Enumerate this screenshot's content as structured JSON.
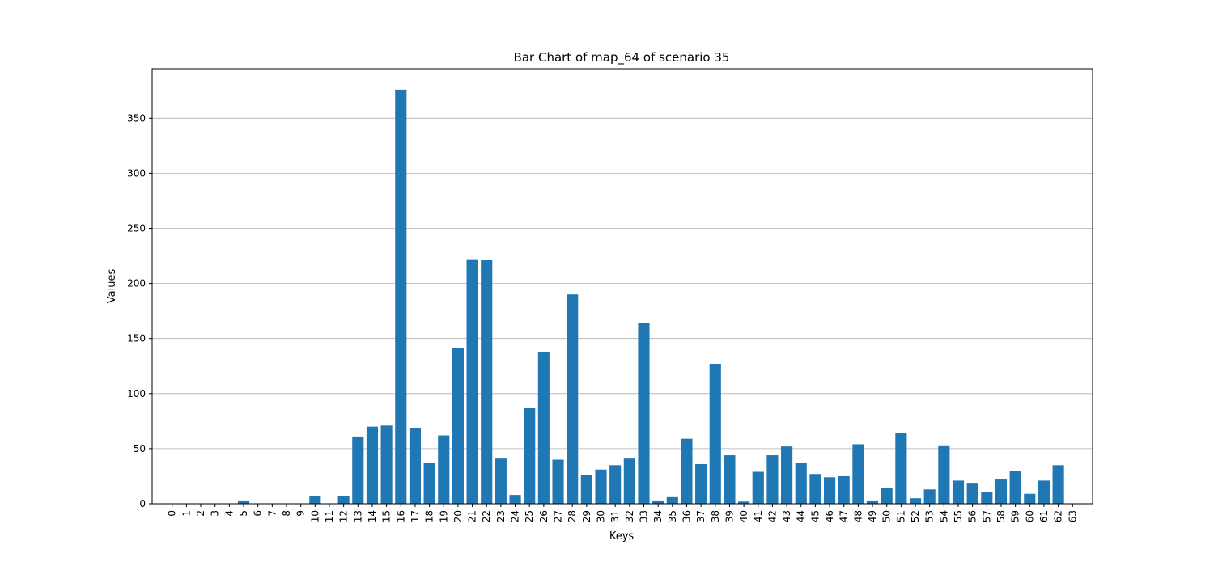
{
  "chart_data": {
    "type": "bar",
    "title": "Bar Chart of map_64 of scenario 35",
    "xlabel": "Keys",
    "ylabel": "Values",
    "ylim": [
      0,
      395
    ],
    "yticks": [
      0,
      50,
      100,
      150,
      200,
      250,
      300,
      350
    ],
    "grid": "y-major",
    "bar_color": "#1f77b4",
    "categories": [
      "0",
      "1",
      "2",
      "3",
      "4",
      "5",
      "6",
      "7",
      "8",
      "9",
      "10",
      "11",
      "12",
      "13",
      "14",
      "15",
      "16",
      "17",
      "18",
      "19",
      "20",
      "21",
      "22",
      "23",
      "24",
      "25",
      "26",
      "27",
      "28",
      "29",
      "30",
      "31",
      "32",
      "33",
      "34",
      "35",
      "36",
      "37",
      "38",
      "39",
      "40",
      "41",
      "42",
      "43",
      "44",
      "45",
      "46",
      "47",
      "48",
      "49",
      "50",
      "51",
      "52",
      "53",
      "54",
      "55",
      "56",
      "57",
      "58",
      "59",
      "60",
      "61",
      "62",
      "63"
    ],
    "values": [
      0,
      0,
      0,
      0,
      0,
      3,
      0,
      0,
      0,
      0,
      7,
      0,
      7,
      61,
      70,
      71,
      376,
      69,
      37,
      62,
      141,
      222,
      221,
      41,
      8,
      87,
      138,
      40,
      190,
      26,
      31,
      35,
      41,
      164,
      3,
      6,
      59,
      36,
      127,
      44,
      2,
      29,
      44,
      52,
      37,
      27,
      24,
      25,
      54,
      3,
      14,
      64,
      5,
      13,
      53,
      21,
      19,
      11,
      22,
      30,
      9,
      21,
      35,
      0
    ]
  }
}
